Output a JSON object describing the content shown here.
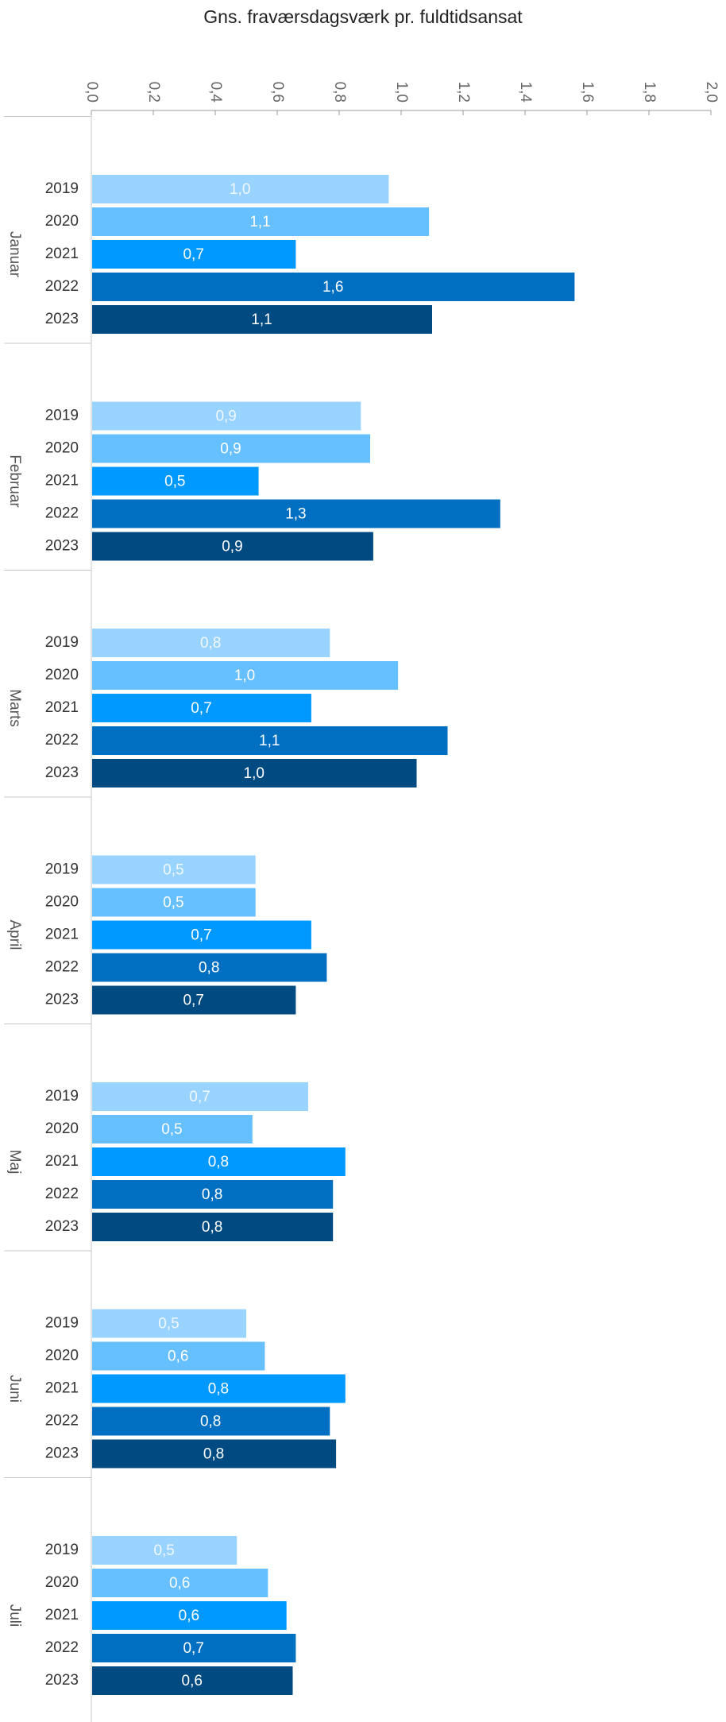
{
  "chart_data": {
    "type": "bar",
    "orientation": "horizontal",
    "title": "Gns. fraværsdagsværk pr. fuldtidsansat",
    "xlim": [
      0,
      2
    ],
    "x_ticks": [
      "0,0",
      "0,2",
      "0,4",
      "0,6",
      "0,8",
      "1,0",
      "1,2",
      "1,4",
      "1,6",
      "1,8",
      "2,0"
    ],
    "tick_values": [
      0,
      0.2,
      0.4,
      0.6,
      0.8,
      1.0,
      1.2,
      1.4,
      1.6,
      1.8,
      2.0
    ],
    "x_axis_position": "top",
    "grid": false,
    "legend": "none",
    "categories": [
      "Januar",
      "Februar",
      "Marts",
      "April",
      "Maj",
      "Juni",
      "Juli"
    ],
    "year_labels": [
      "2019",
      "2020",
      "2021",
      "2022",
      "2023"
    ],
    "series_colors": [
      "#99d3ff",
      "#66bfff",
      "#0099ff",
      "#006fc2",
      "#004a82"
    ],
    "label_colors": [
      "#f2f8ff",
      "#ffffff",
      "#ffffff",
      "#ffffff",
      "#ffffff"
    ],
    "groups": [
      {
        "category": "Januar",
        "values": [
          0.96,
          1.09,
          0.66,
          1.56,
          1.1
        ],
        "labels": [
          "1,0",
          "1,1",
          "0,7",
          "1,6",
          "1,1"
        ]
      },
      {
        "category": "Februar",
        "values": [
          0.87,
          0.9,
          0.54,
          1.32,
          0.91
        ],
        "labels": [
          "0,9",
          "0,9",
          "0,5",
          "1,3",
          "0,9"
        ]
      },
      {
        "category": "Marts",
        "values": [
          0.77,
          0.99,
          0.71,
          1.15,
          1.05
        ],
        "labels": [
          "0,8",
          "1,0",
          "0,7",
          "1,1",
          "1,0"
        ]
      },
      {
        "category": "April",
        "values": [
          0.53,
          0.53,
          0.71,
          0.76,
          0.66
        ],
        "labels": [
          "0,5",
          "0,5",
          "0,7",
          "0,8",
          "0,7"
        ]
      },
      {
        "category": "Maj",
        "values": [
          0.7,
          0.52,
          0.82,
          0.78,
          0.78
        ],
        "labels": [
          "0,7",
          "0,5",
          "0,8",
          "0,8",
          "0,8"
        ]
      },
      {
        "category": "Juni",
        "values": [
          0.5,
          0.56,
          0.82,
          0.77,
          0.79
        ],
        "labels": [
          "0,5",
          "0,6",
          "0,8",
          "0,8",
          "0,8"
        ]
      },
      {
        "category": "Juli",
        "values": [
          0.47,
          0.57,
          0.63,
          0.66,
          0.65
        ],
        "labels": [
          "0,5",
          "0,6",
          "0,6",
          "0,7",
          "0,6"
        ]
      }
    ]
  }
}
